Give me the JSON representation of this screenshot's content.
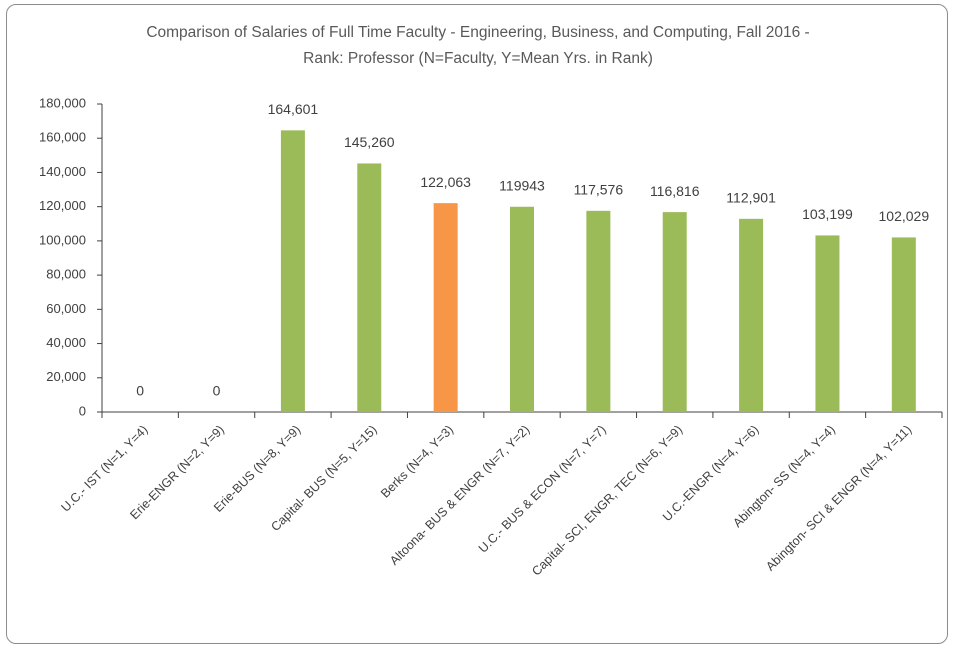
{
  "chart_data": {
    "type": "bar",
    "title": "Comparison  of Salaries of Full Time Faculty - Engineering, Business,  and Computing, Fall 2016 -  Rank:  Professor  (N=Faculty, Y=Mean Yrs. in Rank)",
    "categories": [
      "U.C.- IST (N=1, Y=4)",
      "Erie-ENGR (N=2, Y=9)",
      "Erie-BUS (N=8, Y=9)",
      "Capital- BUS (N=5, Y=15)",
      "Berks (N=4, Y=3)",
      "Altoona- BUS & ENGR (N=7, Y=2)",
      "U.C.- BUS & ECON (N=7, Y=7)",
      "Capital- SCI, ENGR, TEC (N=6, Y=9)",
      "U.C.-ENGR (N=4, Y=6)",
      "Abington- SS (N=4, Y=4)",
      "Abington- SCI & ENGR (N=4, Y=11)"
    ],
    "values": [
      0,
      0,
      164601,
      145260,
      122063,
      119943,
      117576,
      116816,
      112901,
      103199,
      102029
    ],
    "value_labels": [
      "0",
      "0",
      "164,601",
      "145,260",
      "122,063",
      "119943",
      "117,576",
      "116,816",
      "112,901",
      "103,199",
      "102,029"
    ],
    "colors": [
      "#9bbb59",
      "#9bbb59",
      "#9bbb59",
      "#9bbb59",
      "#f79646",
      "#9bbb59",
      "#9bbb59",
      "#9bbb59",
      "#9bbb59",
      "#9bbb59",
      "#9bbb59"
    ],
    "ylim": [
      0,
      180000
    ],
    "yticks": [
      0,
      {
        "value": 20000,
        "label": "20,000"
      },
      {
        "value": 40000,
        "label": "40,000"
      },
      {
        "value": 60000,
        "label": "60,000"
      },
      {
        "value": 80000,
        "label": "80,000"
      },
      {
        "value": 100000,
        "label": "100,000"
      },
      {
        "value": 120000,
        "label": "120,000"
      },
      {
        "value": 140000,
        "label": "140,000"
      },
      {
        "value": 160000,
        "label": "160,000"
      },
      {
        "value": 180000,
        "label": "180,000"
      }
    ],
    "grid": false
  }
}
